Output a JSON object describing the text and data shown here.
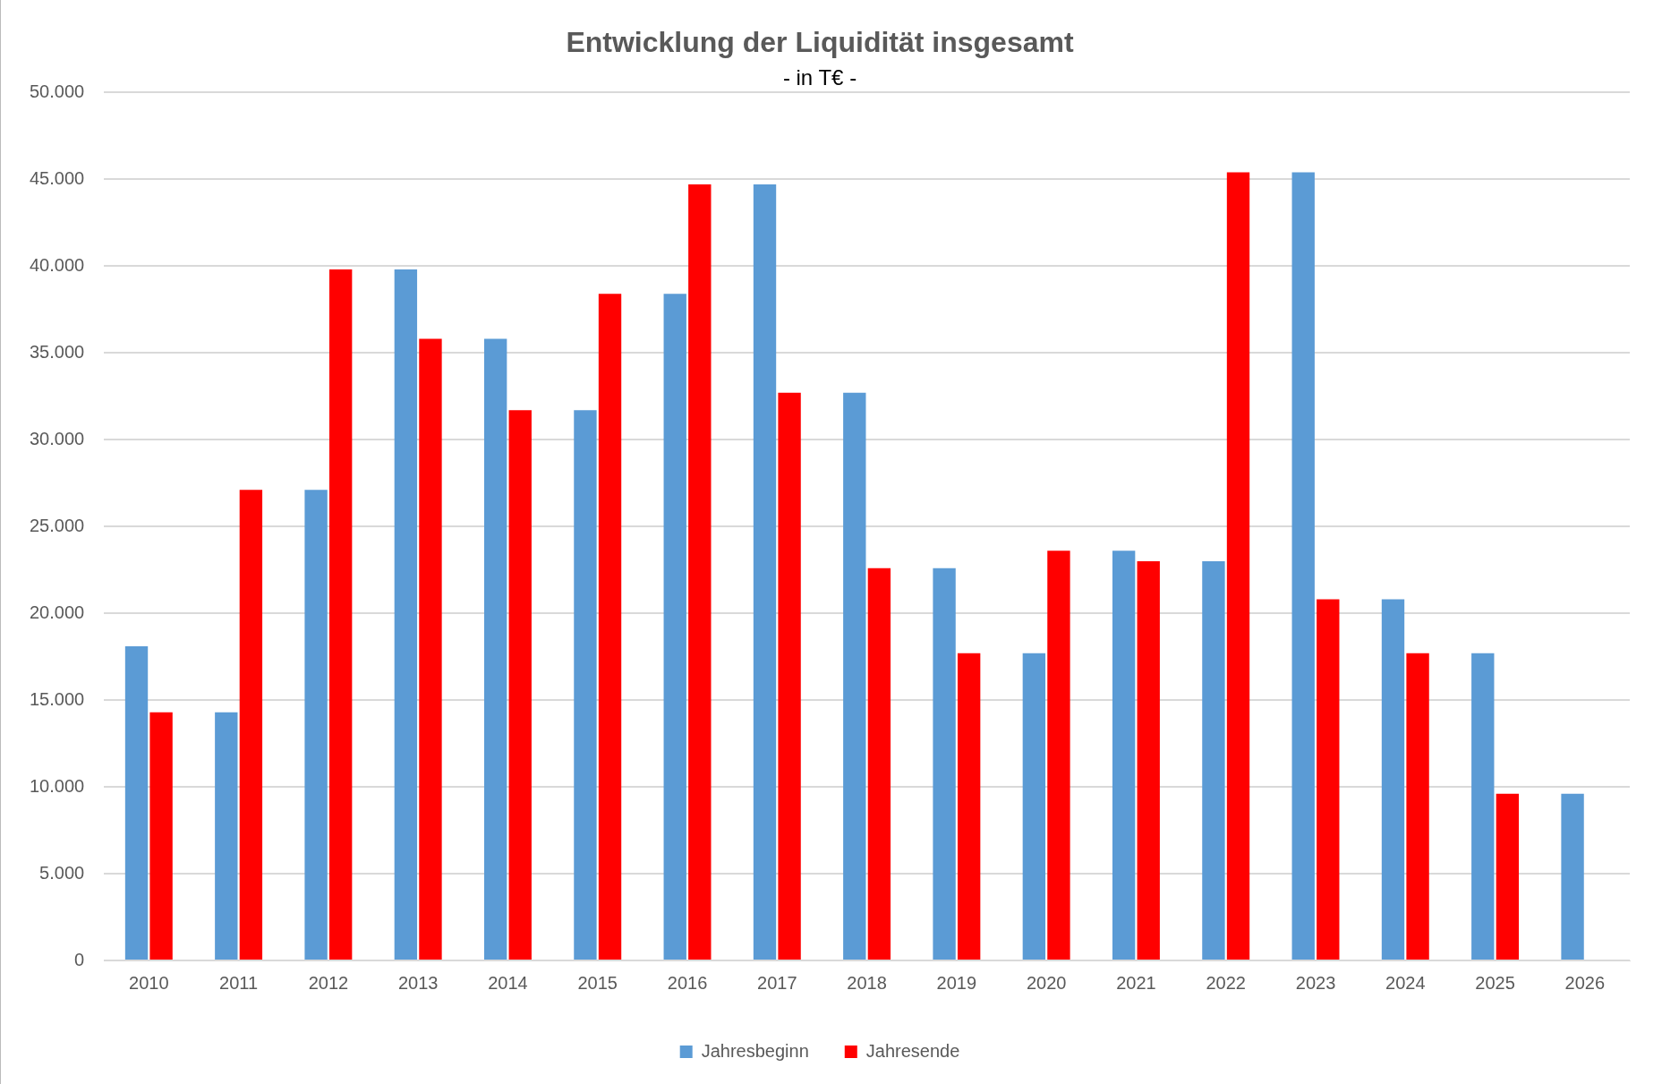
{
  "chart_data": {
    "type": "bar",
    "title": "Entwicklung der Liquidität insgesamt",
    "subtitle": "- in T€ -",
    "categories": [
      "2010",
      "2011",
      "2012",
      "2013",
      "2014",
      "2015",
      "2016",
      "2017",
      "2018",
      "2019",
      "2020",
      "2021",
      "2022",
      "2023",
      "2024",
      "2025",
      "2026"
    ],
    "series": [
      {
        "name": "Jahresbeginn",
        "color": "#5b9bd5",
        "values": [
          18100,
          14300,
          27100,
          39800,
          35800,
          31700,
          38400,
          44700,
          32700,
          22600,
          17700,
          23600,
          23000,
          45400,
          20800,
          17700,
          9600
        ]
      },
      {
        "name": "Jahresende",
        "color": "#ff0000",
        "values": [
          14300,
          27100,
          39800,
          35800,
          31700,
          38400,
          44700,
          32700,
          22600,
          17700,
          23600,
          23000,
          45400,
          20800,
          17700,
          9600,
          null
        ]
      }
    ],
    "ylim": [
      0,
      50000
    ],
    "yticks": [
      {
        "value": 0,
        "label": "0"
      },
      {
        "value": 5000,
        "label": "5.000"
      },
      {
        "value": 10000,
        "label": "10.000"
      },
      {
        "value": 15000,
        "label": "15.000"
      },
      {
        "value": 20000,
        "label": "20.000"
      },
      {
        "value": 25000,
        "label": "25.000"
      },
      {
        "value": 30000,
        "label": "30.000"
      },
      {
        "value": 35000,
        "label": "35.000"
      },
      {
        "value": 40000,
        "label": "40.000"
      },
      {
        "value": 45000,
        "label": "45.000"
      },
      {
        "value": 50000,
        "label": "50.000"
      }
    ],
    "grid": "y",
    "legend": "bottom"
  }
}
